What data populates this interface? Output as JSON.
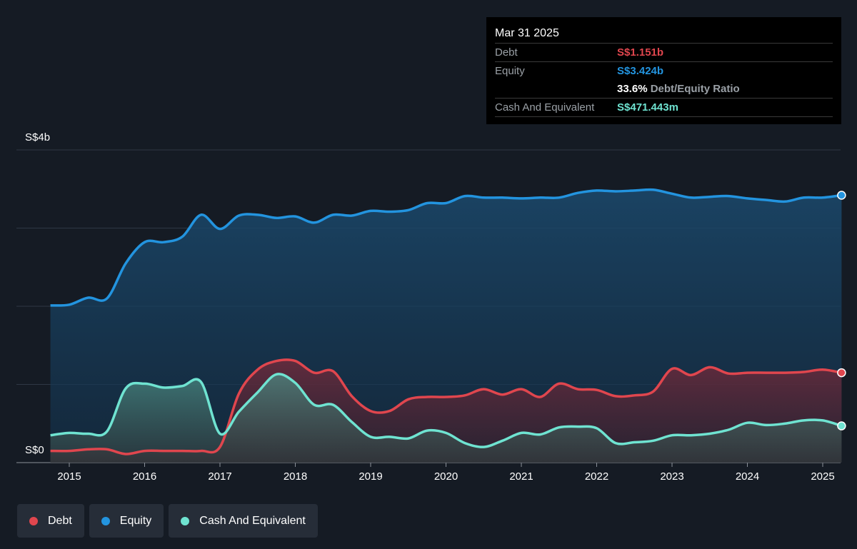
{
  "tooltip": {
    "date": "Mar 31 2025",
    "debt_label": "Debt",
    "debt_value": "S$1.151b",
    "equity_label": "Equity",
    "equity_value": "S$3.424b",
    "ratio_value": "33.6%",
    "ratio_label": "Debt/Equity Ratio",
    "cash_label": "Cash And Equivalent",
    "cash_value": "S$471.443m"
  },
  "legend": [
    {
      "label": "Debt",
      "color": "#e0464e"
    },
    {
      "label": "Equity",
      "color": "#2394df"
    },
    {
      "label": "Cash And Equivalent",
      "color": "#6fe3d1"
    }
  ],
  "chart_data": {
    "type": "area",
    "y_top_label": "S$4b",
    "y_bottom_label": "S$0",
    "ylim": [
      0,
      4
    ],
    "y_unit": "S$ billions",
    "xlim": [
      2014.75,
      2025.25
    ],
    "x_ticks": [
      "2015",
      "2016",
      "2017",
      "2018",
      "2019",
      "2020",
      "2021",
      "2022",
      "2023",
      "2024",
      "2025"
    ],
    "grid": true,
    "series": [
      {
        "name": "Equity",
        "color": "#2394df",
        "x": [
          2014.75,
          2015.0,
          2015.25,
          2015.5,
          2015.75,
          2016.0,
          2016.25,
          2016.5,
          2016.75,
          2017.0,
          2017.25,
          2017.5,
          2017.75,
          2018.0,
          2018.25,
          2018.5,
          2018.75,
          2019.0,
          2019.25,
          2019.5,
          2019.75,
          2020.0,
          2020.25,
          2020.5,
          2020.75,
          2021.0,
          2021.25,
          2021.5,
          2021.75,
          2022.0,
          2022.25,
          2022.5,
          2022.75,
          2023.0,
          2023.25,
          2023.5,
          2023.75,
          2024.0,
          2024.25,
          2024.5,
          2024.75,
          2025.0,
          2025.25
        ],
        "values": [
          2.01,
          2.02,
          2.11,
          2.1,
          2.55,
          2.82,
          2.82,
          2.89,
          3.17,
          2.99,
          3.16,
          3.17,
          3.13,
          3.15,
          3.07,
          3.17,
          3.16,
          3.22,
          3.21,
          3.23,
          3.32,
          3.32,
          3.41,
          3.39,
          3.39,
          3.38,
          3.39,
          3.39,
          3.45,
          3.48,
          3.47,
          3.48,
          3.49,
          3.44,
          3.39,
          3.4,
          3.41,
          3.38,
          3.36,
          3.34,
          3.39,
          3.39,
          3.42
        ]
      },
      {
        "name": "Debt",
        "color": "#e0464e",
        "x": [
          2014.75,
          2015.0,
          2015.25,
          2015.5,
          2015.75,
          2016.0,
          2016.25,
          2016.5,
          2016.75,
          2017.0,
          2017.25,
          2017.5,
          2017.75,
          2018.0,
          2018.25,
          2018.5,
          2018.75,
          2019.0,
          2019.25,
          2019.5,
          2019.75,
          2020.0,
          2020.25,
          2020.5,
          2020.75,
          2021.0,
          2021.25,
          2021.5,
          2021.75,
          2022.0,
          2022.25,
          2022.5,
          2022.75,
          2023.0,
          2023.25,
          2023.5,
          2023.75,
          2024.0,
          2024.25,
          2024.5,
          2024.75,
          2025.0,
          2025.25
        ],
        "values": [
          0.15,
          0.15,
          0.17,
          0.17,
          0.11,
          0.15,
          0.15,
          0.15,
          0.15,
          0.2,
          0.88,
          1.19,
          1.3,
          1.3,
          1.15,
          1.17,
          0.85,
          0.66,
          0.66,
          0.81,
          0.84,
          0.84,
          0.86,
          0.94,
          0.87,
          0.94,
          0.84,
          1.01,
          0.94,
          0.93,
          0.85,
          0.86,
          0.91,
          1.2,
          1.12,
          1.22,
          1.14,
          1.15,
          1.15,
          1.15,
          1.16,
          1.19,
          1.15
        ]
      },
      {
        "name": "Cash And Equivalent",
        "color": "#6fe3d1",
        "x": [
          2014.75,
          2015.0,
          2015.25,
          2015.5,
          2015.75,
          2016.0,
          2016.25,
          2016.5,
          2016.75,
          2017.0,
          2017.25,
          2017.5,
          2017.75,
          2018.0,
          2018.25,
          2018.5,
          2018.75,
          2019.0,
          2019.25,
          2019.5,
          2019.75,
          2020.0,
          2020.25,
          2020.5,
          2020.75,
          2021.0,
          2021.25,
          2021.5,
          2021.75,
          2022.0,
          2022.25,
          2022.5,
          2022.75,
          2023.0,
          2023.25,
          2023.5,
          2023.75,
          2024.0,
          2024.25,
          2024.5,
          2024.75,
          2025.0,
          2025.25
        ],
        "values": [
          0.35,
          0.38,
          0.37,
          0.4,
          0.95,
          1.01,
          0.96,
          0.98,
          1.03,
          0.37,
          0.65,
          0.9,
          1.13,
          1.02,
          0.74,
          0.74,
          0.52,
          0.33,
          0.33,
          0.31,
          0.41,
          0.38,
          0.25,
          0.2,
          0.28,
          0.38,
          0.36,
          0.45,
          0.46,
          0.44,
          0.25,
          0.26,
          0.28,
          0.35,
          0.35,
          0.37,
          0.42,
          0.51,
          0.48,
          0.5,
          0.54,
          0.54,
          0.47
        ]
      }
    ]
  }
}
